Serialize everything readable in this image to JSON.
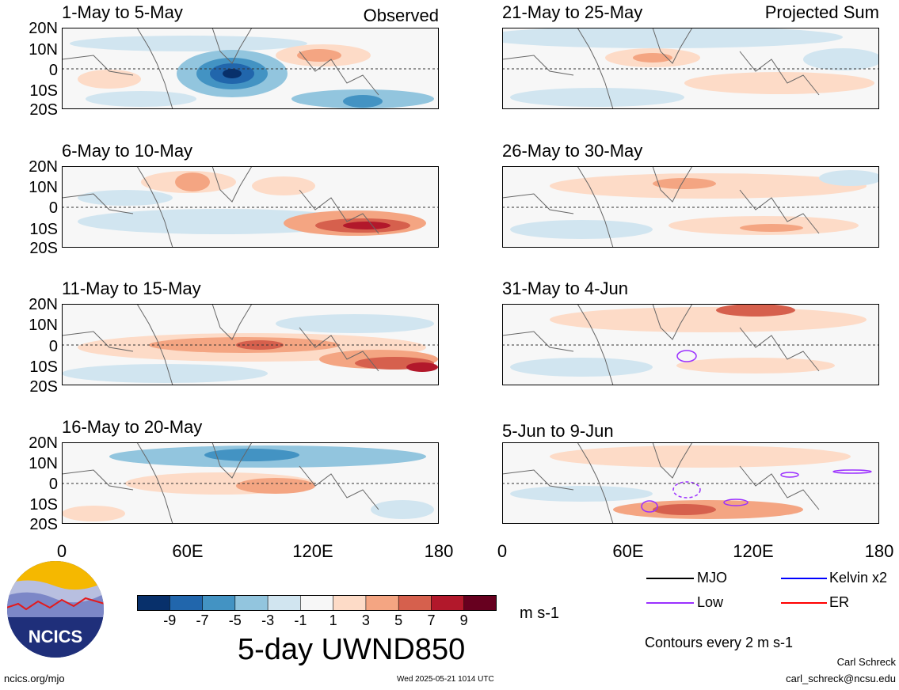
{
  "header": {
    "observed_label": "Observed",
    "projected_label": "Projected Sum"
  },
  "panels": [
    {
      "title": "1-May to 5-May"
    },
    {
      "title": "21-May to 25-May"
    },
    {
      "title": "6-May to 10-May"
    },
    {
      "title": "26-May to 30-May"
    },
    {
      "title": "11-May to 15-May"
    },
    {
      "title": "31-May to 4-Jun"
    },
    {
      "title": "16-May to 20-May"
    },
    {
      "title": "5-Jun to 9-Jun"
    }
  ],
  "lat_labels": [
    "20N",
    "10N",
    "0",
    "10S",
    "20S"
  ],
  "lon_labels": [
    "0",
    "60E",
    "120E",
    "180"
  ],
  "colorbar": {
    "colors": [
      "#08306b",
      "#2166ac",
      "#4393c3",
      "#92c5de",
      "#d1e5f0",
      "#f7f7f7",
      "#fddbc7",
      "#f4a582",
      "#d6604d",
      "#b2182b",
      "#67001f"
    ],
    "tick_labels": [
      "-9",
      "-7",
      "-5",
      "-3",
      "-1",
      "1",
      "3",
      "5",
      "7",
      "9"
    ],
    "units": "m s-1",
    "title": "5-day UWND850"
  },
  "legend": {
    "items": [
      {
        "label": "MJO",
        "color": "#000000"
      },
      {
        "label": "Kelvin x2",
        "color": "#0000ff"
      },
      {
        "label": "Low",
        "color": "#9b30ff"
      },
      {
        "label": "ER",
        "color": "#ff0000"
      }
    ],
    "contour_note": "Contours every 2 m s-1"
  },
  "logo": {
    "text": "NCICS"
  },
  "footer": {
    "url": "ncics.org/mjo",
    "timestamp": "Wed 2025-05-21 1014 UTC",
    "author": "Carl Schreck",
    "email": "carl_schreck@ncsu.edu"
  }
}
